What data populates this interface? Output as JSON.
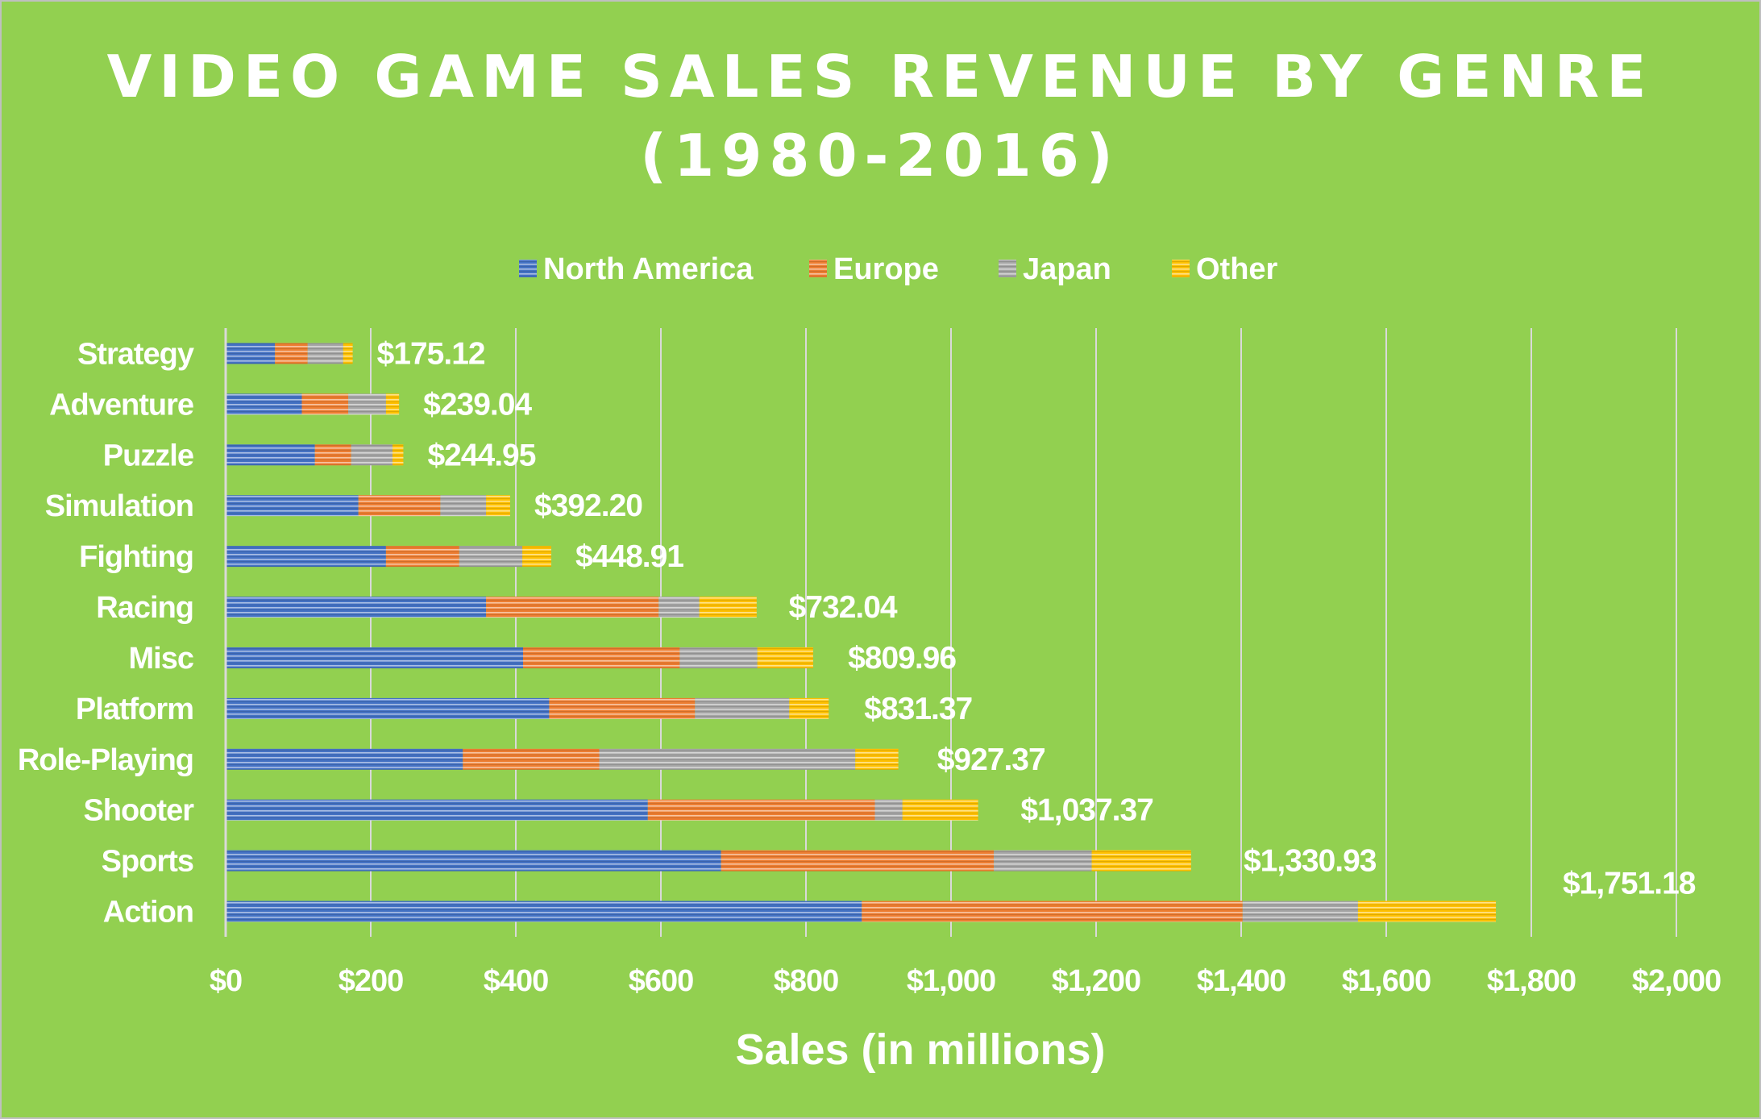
{
  "chart_data": {
    "type": "bar",
    "orientation": "horizontal",
    "stacked": true,
    "title_lines": [
      "VIDEO GAME SALES REVENUE BY GENRE",
      "(1980-2016)"
    ],
    "xlabel": "Sales (in millions)",
    "ylabel": "",
    "xlim": [
      0,
      2000
    ],
    "x_ticks": [
      0,
      200,
      400,
      600,
      800,
      1000,
      1200,
      1400,
      1600,
      1800,
      2000
    ],
    "x_tick_labels": [
      "$0",
      "$200",
      "$400",
      "$600",
      "$800",
      "$1,000",
      "$1,200",
      "$1,400",
      "$1,600",
      "$1,800",
      "$2,000"
    ],
    "grid": true,
    "legend_position": "top",
    "categories": [
      "Strategy",
      "Adventure",
      "Puzzle",
      "Simulation",
      "Fighting",
      "Racing",
      "Misc",
      "Platform",
      "Role-Playing",
      "Shooter",
      "Sports",
      "Action"
    ],
    "series": [
      {
        "name": "North America",
        "color": "#4472C4",
        "values": [
          68,
          105,
          123,
          183,
          221,
          359,
          410,
          446,
          327,
          582,
          683,
          877
        ]
      },
      {
        "name": "Europe",
        "color": "#ED7D31",
        "values": [
          45,
          64,
          50,
          113,
          101,
          238,
          216,
          201,
          188,
          313,
          376,
          525
        ]
      },
      {
        "name": "Japan",
        "color": "#A5A5A5",
        "values": [
          49,
          52,
          57,
          63,
          87,
          56,
          107,
          130,
          353,
          38,
          135,
          159
        ]
      },
      {
        "name": "Other",
        "color": "#FFC000",
        "values": [
          13.12,
          18.04,
          14.95,
          33.2,
          39.91,
          79.04,
          76.96,
          54.37,
          59.37,
          104.37,
          136.93,
          190.18
        ]
      }
    ],
    "totals": [
      175.12,
      239.04,
      244.95,
      392.2,
      448.91,
      732.04,
      809.96,
      831.37,
      927.37,
      1037.37,
      1330.93,
      1751.18
    ],
    "total_labels": [
      "$175.12",
      "$239.04",
      "$244.95",
      "$392.20",
      "$448.91",
      "$732.04",
      "$809.96",
      "$831.37",
      "$927.37",
      "$1,037.37",
      "$1,330.93",
      "$1,751.18"
    ]
  }
}
